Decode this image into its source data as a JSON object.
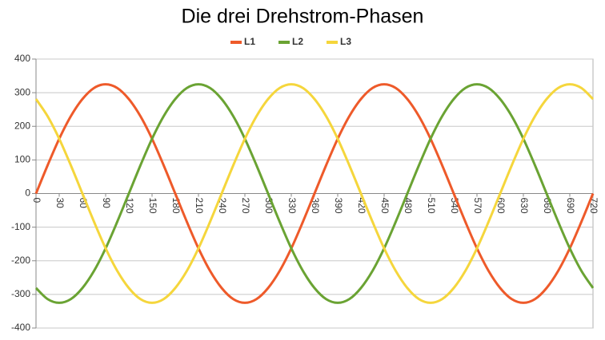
{
  "chart_data": {
    "type": "line",
    "title": "Die drei Drehstrom-Phasen",
    "x": [
      0,
      15,
      30,
      45,
      60,
      75,
      90,
      105,
      120,
      135,
      150,
      165,
      180,
      195,
      210,
      225,
      240,
      255,
      270,
      285,
      300,
      315,
      330,
      345,
      360,
      375,
      390,
      405,
      420,
      435,
      450,
      465,
      480,
      495,
      510,
      525,
      540,
      555,
      570,
      585,
      600,
      615,
      630,
      645,
      660,
      675,
      690,
      705,
      720
    ],
    "series": [
      {
        "name": "L1",
        "color": "#ee5a2a",
        "values": [
          0,
          84,
          163,
          230,
          281,
          314,
          325,
          314,
          281,
          230,
          163,
          84,
          0,
          -84,
          -163,
          -230,
          -281,
          -314,
          -325,
          -314,
          -281,
          -230,
          -163,
          -84,
          0,
          84,
          163,
          230,
          281,
          314,
          325,
          314,
          281,
          230,
          163,
          84,
          0,
          -84,
          -163,
          -230,
          -281,
          -314,
          -325,
          -314,
          -281,
          -230,
          -163,
          -84,
          0
        ]
      },
      {
        "name": "L2",
        "color": "#6aa333",
        "values": [
          -281,
          -314,
          -325,
          -314,
          -281,
          -230,
          -163,
          -84,
          0,
          84,
          163,
          230,
          281,
          314,
          325,
          314,
          281,
          230,
          163,
          84,
          0,
          -84,
          -163,
          -230,
          -281,
          -314,
          -325,
          -314,
          -281,
          -230,
          -163,
          -84,
          0,
          84,
          163,
          230,
          281,
          314,
          325,
          314,
          281,
          230,
          163,
          84,
          0,
          -84,
          -163,
          -230,
          -281
        ]
      },
      {
        "name": "L3",
        "color": "#f5d63c",
        "values": [
          281,
          230,
          163,
          84,
          0,
          -84,
          -163,
          -230,
          -281,
          -314,
          -325,
          -314,
          -281,
          -230,
          -163,
          -84,
          0,
          84,
          163,
          230,
          281,
          314,
          325,
          314,
          281,
          230,
          163,
          84,
          0,
          -84,
          -163,
          -230,
          -281,
          -314,
          -325,
          -314,
          -281,
          -230,
          -163,
          -84,
          0,
          84,
          163,
          230,
          281,
          314,
          325,
          314,
          281
        ]
      }
    ],
    "xlim": [
      0,
      720
    ],
    "xticks": [
      0,
      30,
      60,
      90,
      120,
      150,
      180,
      210,
      240,
      270,
      300,
      330,
      360,
      390,
      420,
      450,
      480,
      510,
      540,
      570,
      600,
      630,
      660,
      690,
      720
    ],
    "ylim": [
      -400,
      400
    ],
    "yticks": [
      -400,
      -300,
      -200,
      -100,
      0,
      100,
      200,
      300,
      400
    ],
    "grid": true,
    "legend": "top"
  }
}
